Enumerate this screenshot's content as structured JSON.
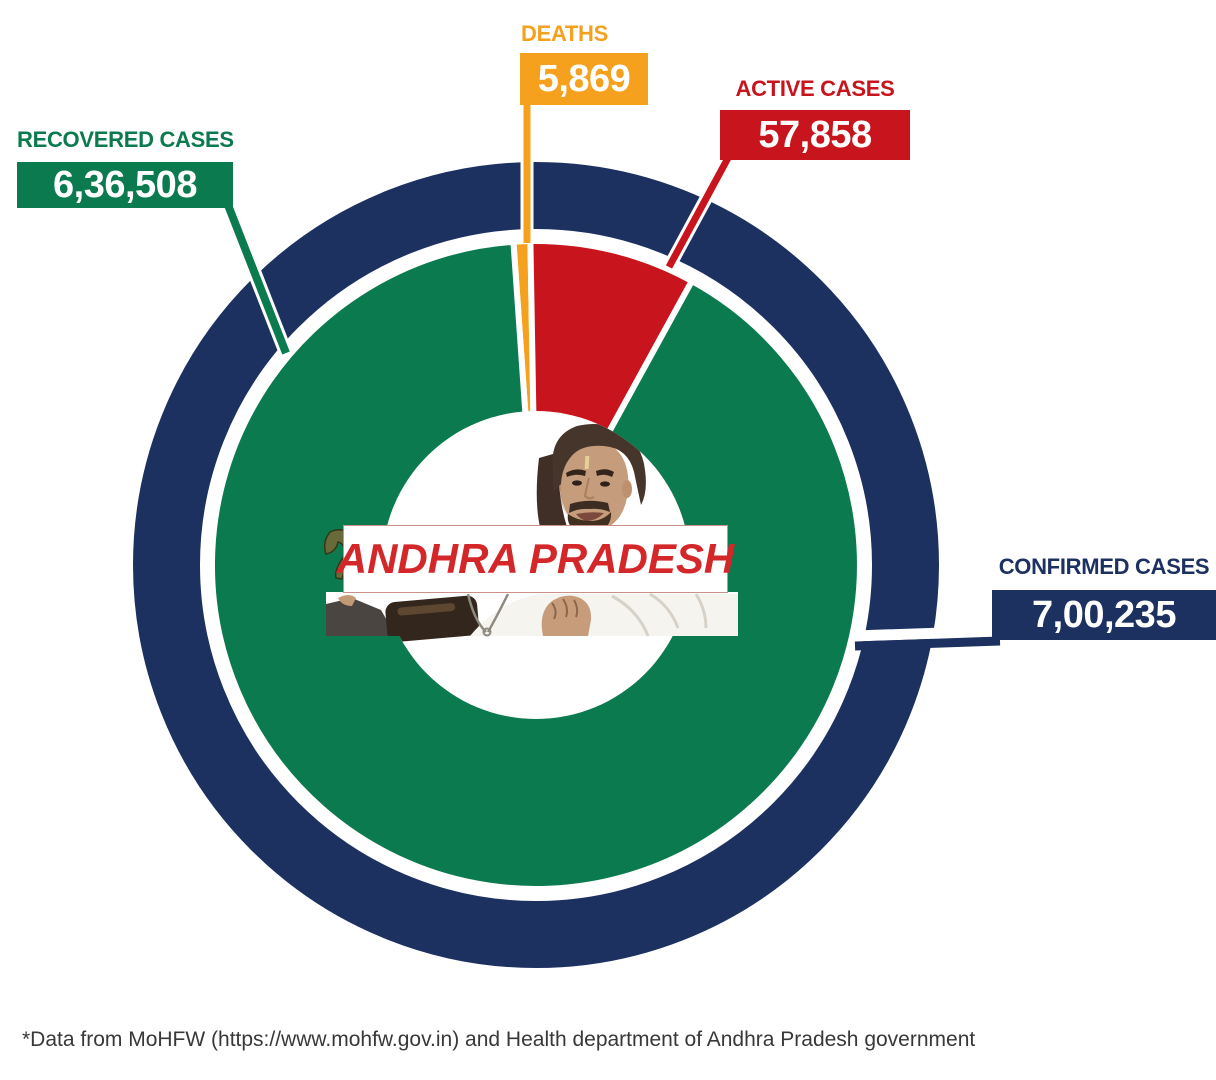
{
  "banner": {
    "text": "ANDHRA PRADESH",
    "text_color": "#d42729"
  },
  "callouts": {
    "deaths": {
      "title": "DEATHS",
      "value": "5,869",
      "color": "#f5a11d"
    },
    "active_cases": {
      "title": "ACTIVE CASES",
      "value": "57,858",
      "color": "#c8141d"
    },
    "recovered_cases": {
      "title": "RECOVERED CASES",
      "value": "6,36,508",
      "color": "#0b7a4f"
    },
    "confirmed_cases": {
      "title": "CONFIRMED CASES",
      "value": "7,00,235",
      "color": "#1d3160"
    }
  },
  "footer": {
    "source_note": "*Data from MoHFW (https://www.mohfw.gov.in) and Health department of Andhra Pradesh government"
  },
  "chart_data": {
    "type": "pie",
    "title": "ANDHRA PRADESH",
    "legend_position": "flag-callouts",
    "total": 700235,
    "start_angle_deg": -4,
    "segments": [
      {
        "label": "Deaths",
        "value": 5869,
        "display": "5,869",
        "color": "#f5a11d"
      },
      {
        "label": "Active Cases",
        "value": 57858,
        "display": "57,858",
        "color": "#c8141d"
      },
      {
        "label": "Recovered Cases",
        "value": 636508,
        "display": "6,36,508",
        "color": "#0b7a4f"
      }
    ],
    "outer_ring": {
      "label": "Confirmed Cases",
      "value": 700235,
      "display": "7,00,235",
      "color": "#1d3160"
    }
  }
}
